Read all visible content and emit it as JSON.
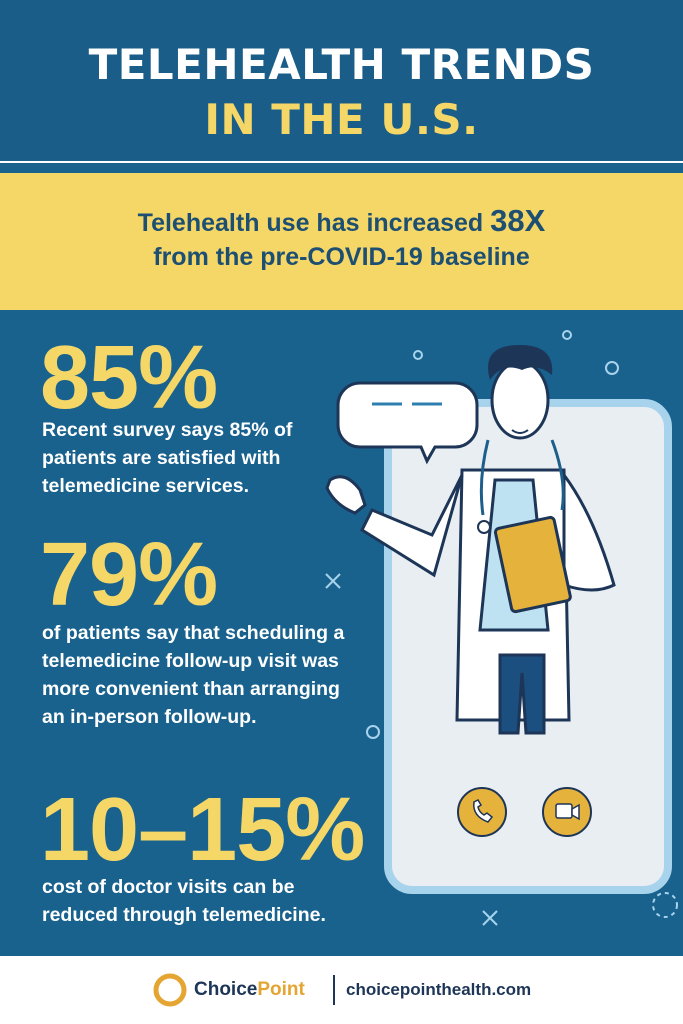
{
  "header": {
    "title_line1": "TELEHEALTH TRENDS",
    "title_line2": "IN THE U.S."
  },
  "banner": {
    "line1": "Telehealth use has increased",
    "highlight": "38X",
    "line2": "from the pre-COVID-19 baseline"
  },
  "stats": [
    {
      "value": "85%",
      "text": "Recent survey says 85% of patients are satisfied with telemedicine services."
    },
    {
      "value": "79%",
      "text": "of patients say that scheduling a telemedicine follow-up visit was more convenient than arranging an in-person follow-up."
    },
    {
      "value": "10–15%",
      "text": "cost of doctor visits can be reduced through telemedicine."
    }
  ],
  "footer": {
    "brand_part1": "Choice",
    "brand_part2": "Point",
    "website": "choicepointhealth.com"
  }
}
